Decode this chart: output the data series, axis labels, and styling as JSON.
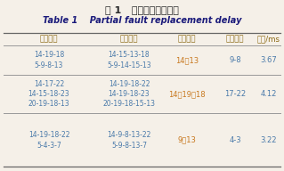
{
  "title_cn": "表 1   部分故障倒换时延",
  "title_en": "Table 1    Partial fault replacement delay",
  "headers": [
    "工作路径",
    "保护路径",
    "编码节点",
    "故障链路",
    "耗时/ms"
  ],
  "rows": [
    {
      "work": [
        "5-9-8-13",
        "14-19-18"
      ],
      "protect": [
        "5-9-14-15-13",
        "14-15-13-18"
      ],
      "code_node": "14，13",
      "fault_link": "9-8",
      "time": "3.67"
    },
    {
      "work": [
        "20-19-18-13",
        "14-15-18-23",
        "14-17-22"
      ],
      "protect": [
        "20-19-18-15-13",
        "14-19-18-23",
        "14-19-18-22"
      ],
      "code_node": "14、19、18",
      "fault_link": "17-22",
      "time": "4.12"
    },
    {
      "work": [
        "5-4-3-7",
        "14-19-18-22"
      ],
      "protect": [
        "5-9-8-13-7",
        "14-9-8-13-22"
      ],
      "code_node": "9，13",
      "fault_link": "4-3",
      "time": "3.22"
    }
  ],
  "bg_color": "#f5f0e8",
  "header_cn_color": "#8b6914",
  "header_en_color": "#1a1a7a",
  "data_blue_color": "#4a7aaa",
  "data_orange_color": "#c8781e",
  "title_cn_color": "#2a2a2a",
  "title_en_color": "#1a1a7a",
  "line_color": "#999999",
  "line_color_thick": "#666666"
}
